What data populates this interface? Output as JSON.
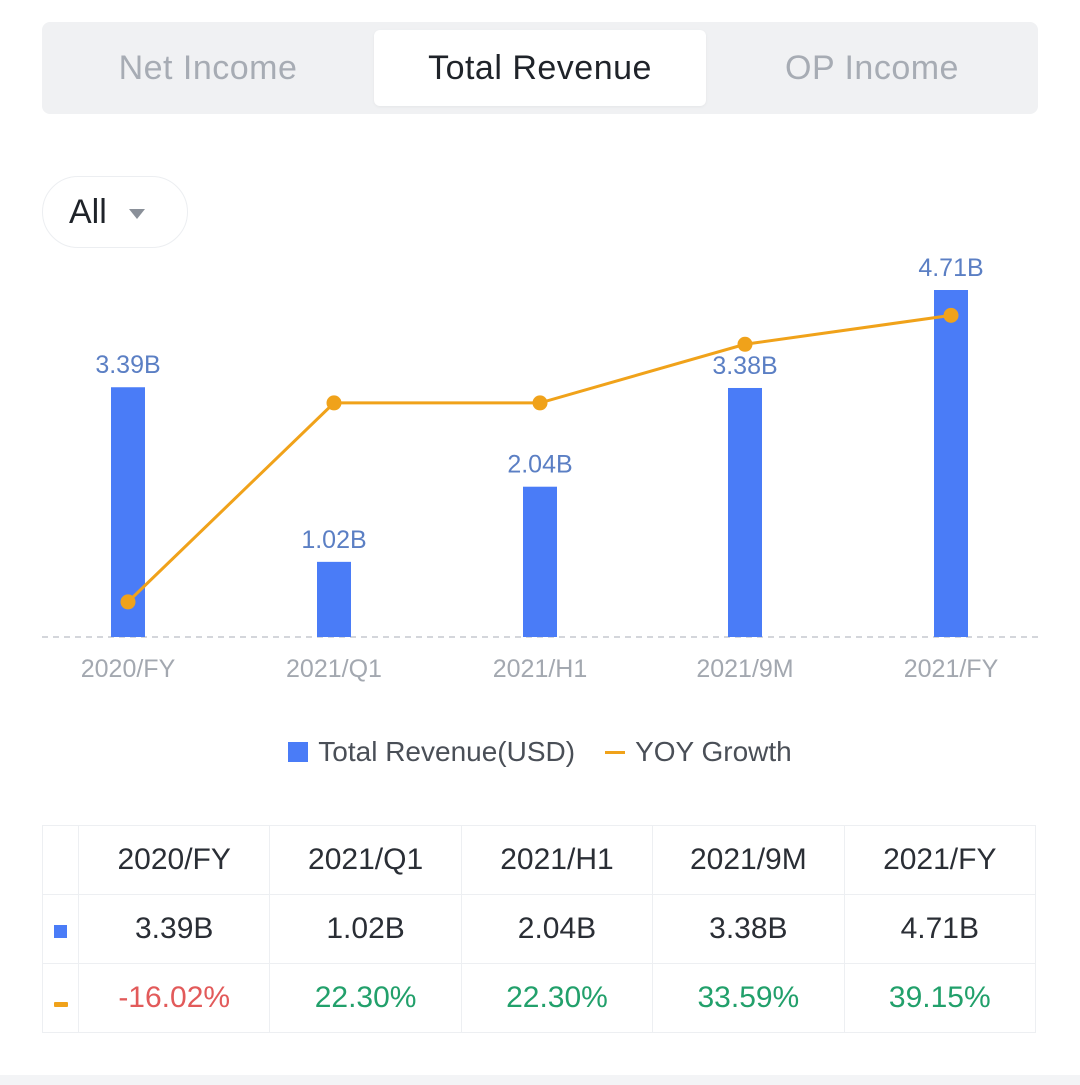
{
  "tabs": [
    {
      "label": "Net Income",
      "active": false
    },
    {
      "label": "Total Revenue",
      "active": true
    },
    {
      "label": "OP Income",
      "active": false
    }
  ],
  "range_selector": {
    "label": "All",
    "icon": "caret-down-icon"
  },
  "colors": {
    "bar": "#4a7cf7",
    "line": "#f0a21a",
    "positive": "#22a06b",
    "negative": "#e25a5a",
    "label": "#5b7fc4"
  },
  "chart_data": {
    "type": "bar",
    "categories": [
      "2020/FY",
      "2021/Q1",
      "2021/H1",
      "2021/9M",
      "2021/FY"
    ],
    "series": [
      {
        "name": "Total Revenue(USD)",
        "type": "bar",
        "values": [
          3.39,
          1.02,
          2.04,
          3.38,
          4.71
        ],
        "labels": [
          "3.39B",
          "1.02B",
          "2.04B",
          "3.38B",
          "4.71B"
        ],
        "unit": "B"
      },
      {
        "name": "YOY Growth",
        "type": "line",
        "values": [
          -16.02,
          22.3,
          22.3,
          33.59,
          39.15
        ],
        "labels": [
          "-16.02%",
          "22.30%",
          "22.30%",
          "33.59%",
          "39.15%"
        ],
        "unit": "%"
      }
    ],
    "ylim_bar": [
      0,
      4.71
    ],
    "ylim_line": [
      -19.5,
      45
    ],
    "legend_position": "bottom",
    "grid": false
  },
  "table": {
    "columns": [
      "2020/FY",
      "2021/Q1",
      "2021/H1",
      "2021/9M",
      "2021/FY"
    ],
    "revenue_row": [
      "3.39B",
      "1.02B",
      "2.04B",
      "3.38B",
      "4.71B"
    ],
    "yoy_row": [
      "-16.02%",
      "22.30%",
      "22.30%",
      "33.59%",
      "39.15%"
    ]
  }
}
